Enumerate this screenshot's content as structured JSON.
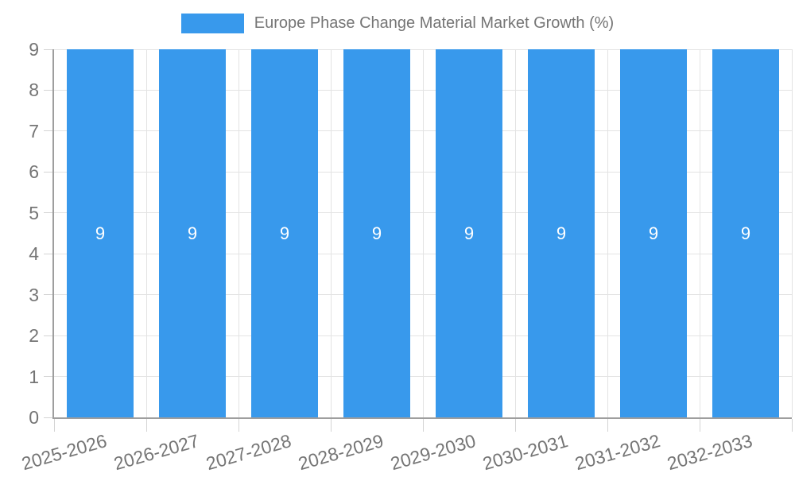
{
  "chart_data": {
    "type": "bar",
    "title": "Europe Phase Change Material Market Growth (%)",
    "categories": [
      "2025-2026",
      "2026-2027",
      "2027-2028",
      "2028-2029",
      "2029-2030",
      "2030-2031",
      "2031-2032",
      "2032-2033"
    ],
    "values": [
      9,
      9,
      9,
      9,
      9,
      9,
      9,
      9
    ],
    "xlabel": "",
    "ylabel": "",
    "ylim": [
      0,
      9
    ],
    "yticks": [
      0,
      1,
      2,
      3,
      4,
      5,
      6,
      7,
      8,
      9
    ],
    "grid": true,
    "legend_position": "top",
    "bar_labels_visible": true,
    "x_label_rotation_deg": -16,
    "colors": {
      "bar": "#3899EC",
      "text": "#757575",
      "axis": "#9E9E9E",
      "grid": "#E3E3E3",
      "tick": "#D4D4D4",
      "bar_label": "#FFFFFF",
      "background": "#FFFFFF"
    }
  }
}
